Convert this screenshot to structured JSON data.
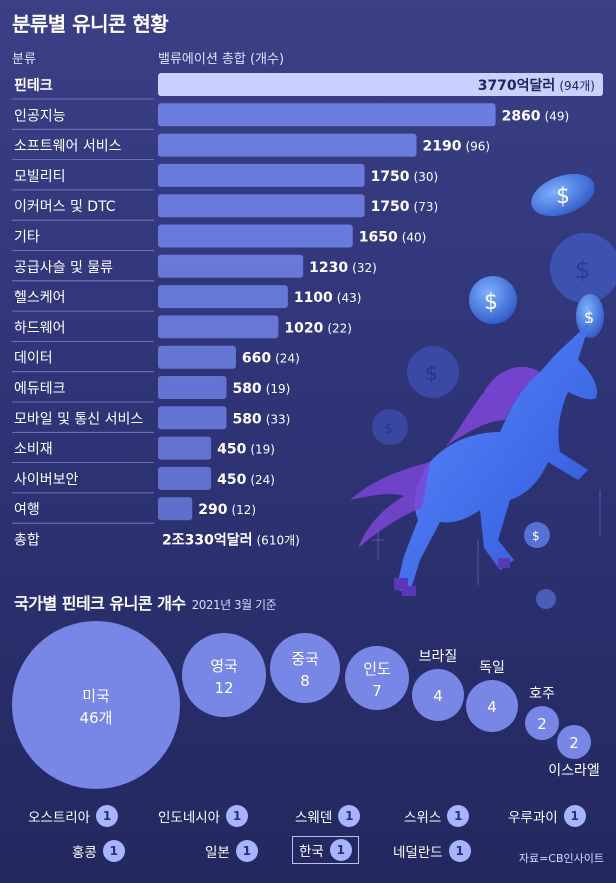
{
  "title": "분류별 유니콘 현황",
  "headers": {
    "category": "분류",
    "value": "밸류에이션 총합 (개수)"
  },
  "chart_data": [
    {
      "type": "bar",
      "categories": [
        "핀테크",
        "인공지능",
        "소프트웨어 서비스",
        "모빌리티",
        "이커머스 및 DTC",
        "기타",
        "공급사슬 및 물류",
        "헬스케어",
        "하드웨어",
        "데이터",
        "에듀테크",
        "모바일 및 통신 서비스",
        "소비재",
        "사이버보안",
        "여행"
      ],
      "values": [
        3770,
        2860,
        2190,
        1750,
        1750,
        1650,
        1230,
        1100,
        1020,
        660,
        580,
        580,
        450,
        450,
        290
      ],
      "counts": [
        94,
        49,
        96,
        30,
        73,
        40,
        32,
        43,
        22,
        24,
        19,
        33,
        19,
        24,
        12
      ],
      "unit_label_first": "억달러",
      "total": {
        "label": "총합",
        "value": "2조330억달러",
        "count": "(610개)"
      },
      "colors": {
        "bar": "#6f82e6",
        "bar_highlight": "#c9d2ff"
      }
    },
    {
      "type": "bubble",
      "title": "국가별 핀테크 유니콘 개수",
      "note": "2021년 3월 기준",
      "points": [
        {
          "name": "미국",
          "value": 46,
          "unit": "개"
        },
        {
          "name": "영국",
          "value": 12
        },
        {
          "name": "중국",
          "value": 8
        },
        {
          "name": "인도",
          "value": 7
        },
        {
          "name": "브라질",
          "value": 4
        },
        {
          "name": "독일",
          "value": 4
        },
        {
          "name": "호주",
          "value": 2
        },
        {
          "name": "이스라엘",
          "value": 2
        }
      ],
      "ones": [
        "오스트리아",
        "인도네시아",
        "스웨덴",
        "스위스",
        "우루과이",
        "홍콩",
        "일본",
        "한국",
        "네덜란드"
      ],
      "ones_value": 1,
      "color": "#7f8ff0"
    }
  ],
  "source": "자료=CB인사이트"
}
